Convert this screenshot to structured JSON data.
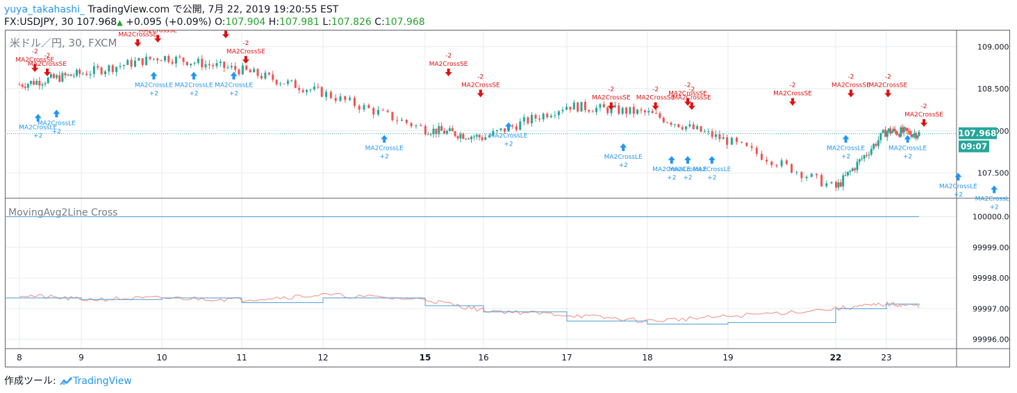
{
  "header": {
    "user": "yuya_takahashi_",
    "published": "TradingView.com で公開, 7月 22, 2019 19:20:55 EST",
    "symbol": "FX:USDJPY, 30",
    "last": "107.968",
    "change": "+0.095 (+0.09%)",
    "o_label": "O:",
    "o_value": "107.904",
    "h_label": "H:",
    "h_value": "107.981",
    "l_label": "L:",
    "l_value": "107.826",
    "c_label": "C:",
    "c_value": "107.968"
  },
  "main_pane": {
    "title": "米ドル／円, 30, FXCM",
    "price_label": "107.968",
    "time_label": "09:07",
    "y_ticks": [
      "109.000",
      "108.500",
      "108.000",
      "107.500"
    ]
  },
  "indicator_pane": {
    "title": "MovingAvg2Line Cross",
    "y_ticks": [
      "100000.000",
      "99999.000",
      "99998.000",
      "99997.000",
      "99996.000"
    ]
  },
  "x_ticks": [
    "8",
    "9",
    "10",
    "11",
    "12",
    "15",
    "16",
    "17",
    "18",
    "19",
    "22",
    "23"
  ],
  "footer": {
    "label": "作成ツール:",
    "brand": "TradingView"
  },
  "colors": {
    "up": "#26a69a",
    "down": "#ef5350",
    "long": "#2196f3",
    "short": "#e01010",
    "fast_ma": "#f28b82",
    "slow_ma": "#4a9bd1",
    "grid": "#e6ebf1"
  },
  "chart_data": {
    "type": "line",
    "x": [
      "8",
      "9",
      "10",
      "11",
      "12",
      "15",
      "16",
      "17",
      "18",
      "19",
      "22",
      "23",
      "23"
    ],
    "price_pane": {
      "series": [
        {
          "values": [
            108.55,
            108.68,
            108.88,
            108.72,
            108.45,
            108.02,
            107.92,
            108.3,
            108.21,
            107.88,
            107.32,
            108.0,
            107.968
          ]
        }
      ],
      "ylim": [
        107.2,
        109.2
      ]
    },
    "indicator_pane": {
      "series": [
        {
          "values": [
            99997.45,
            99997.3,
            99997.35,
            99997.3,
            99997.45,
            99997.3,
            99996.95,
            99996.8,
            99996.6,
            99996.75,
            99997.0,
            99997.15,
            99997.1
          ]
        },
        {
          "values": [
            99997.35,
            99997.3,
            99997.35,
            99997.2,
            99997.35,
            99997.1,
            99996.9,
            99996.6,
            99996.5,
            99996.55,
            99997.0,
            99997.15,
            99997.1
          ]
        }
      ],
      "ylim": [
        99995.7,
        100000.6
      ]
    },
    "long_signals": [
      {
        "x": 0.3,
        "price": 108.3,
        "label": "MA2CrossLE",
        "qty": "+2"
      },
      {
        "x": 0.6,
        "price": 108.35,
        "label": "MA2CrossLE",
        "qty": "+2"
      },
      {
        "x": 1.9,
        "price": 108.8,
        "label": "MA2CrossLE",
        "qty": "+2"
      },
      {
        "x": 2.4,
        "price": 108.8,
        "label": "MA2CrossLE",
        "qty": "+2"
      },
      {
        "x": 2.9,
        "price": 108.8,
        "label": "MA2CrossLE",
        "qty": "+2"
      },
      {
        "x": 4.6,
        "price": 108.05,
        "label": "MA2CrossLE",
        "qty": "+2"
      },
      {
        "x": 6.3,
        "price": 108.2,
        "label": "MA2CrossLE",
        "qty": "+2"
      },
      {
        "x": 7.7,
        "price": 107.95,
        "label": "MA2CrossLE",
        "qty": "+2"
      },
      {
        "x": 8.3,
        "price": 107.8,
        "label": "MA2CrossLE",
        "qty": "+2"
      },
      {
        "x": 8.5,
        "price": 107.8,
        "label": "MA2CrossLE",
        "qty": "+2"
      },
      {
        "x": 8.8,
        "price": 107.8,
        "label": "MA2CrossLE",
        "qty": "+2"
      },
      {
        "x": 10.2,
        "price": 108.05,
        "label": "MA2CrossLE",
        "qty": "+2"
      },
      {
        "x": 11.65,
        "price": 108.05,
        "label": "MA2CrossLE",
        "qty": "+2"
      },
      {
        "x": 13.2,
        "price": 107.6,
        "label": "MA2CrossLE",
        "qty": "+2"
      },
      {
        "x": 14.3,
        "price": 107.45,
        "label": "MA2CrossLE",
        "qty": "+2"
      },
      {
        "x": 16.0,
        "price": 107.6,
        "label": "MA2CrossLE",
        "qty": "+2"
      },
      {
        "x": 16.7,
        "price": 107.6,
        "label": "MA2CrossLE",
        "qty": "+2"
      },
      {
        "x": 17.05,
        "price": 107.7,
        "label": "MA2CrossLE",
        "qty": "+2"
      }
    ],
    "short_signals": [
      {
        "x": 0.25,
        "price": 108.6,
        "label": "MA2CrossSE",
        "qty": "-2"
      },
      {
        "x": 0.45,
        "price": 108.55,
        "label": "MA2CrossSE",
        "qty": "-2"
      },
      {
        "x": 1.7,
        "price": 108.9,
        "label": "MA2CrossSE",
        "qty": "-2"
      },
      {
        "x": 1.95,
        "price": 108.95,
        "label": "MA2CrossSE",
        "qty": "-2"
      },
      {
        "x": 2.8,
        "price": 109.0,
        "label": "MA2CrossSE",
        "qty": "-2"
      },
      {
        "x": 3.05,
        "price": 108.7,
        "label": "MA2CrossSE",
        "qty": "-2"
      },
      {
        "x": 5.4,
        "price": 108.55,
        "label": "MA2CrossSE",
        "qty": "-2"
      },
      {
        "x": 5.95,
        "price": 108.3,
        "label": "MA2CrossSE",
        "qty": "-2"
      },
      {
        "x": 7.55,
        "price": 108.15,
        "label": "MA2CrossSE",
        "qty": "-2"
      },
      {
        "x": 8.1,
        "price": 108.15,
        "label": "MA2CrossSE",
        "qty": "-2"
      },
      {
        "x": 8.5,
        "price": 108.2,
        "label": "MA2CrossSE",
        "qty": "-2"
      },
      {
        "x": 8.55,
        "price": 108.15,
        "label": "MA2CrossSE",
        "qty": "-2"
      },
      {
        "x": 9.6,
        "price": 108.2,
        "label": "MA2CrossSE",
        "qty": "-2"
      },
      {
        "x": 10.3,
        "price": 108.3,
        "label": "MA2CrossSE",
        "qty": "-2"
      },
      {
        "x": 11.05,
        "price": 108.3,
        "label": "MA2CrossSE",
        "qty": "-2"
      },
      {
        "x": 12.15,
        "price": 107.95,
        "label": "MA2CrossSE",
        "qty": "-2"
      },
      {
        "x": 15.65,
        "price": 107.95,
        "label": "MA2CrossSE",
        "qty": "-2"
      },
      {
        "x": 16.3,
        "price": 108.1,
        "label": "MA2CrossSE",
        "qty": "-2"
      },
      {
        "x": 16.8,
        "price": 108.1,
        "label": "MA2CrossSE",
        "qty": "-2"
      }
    ]
  }
}
